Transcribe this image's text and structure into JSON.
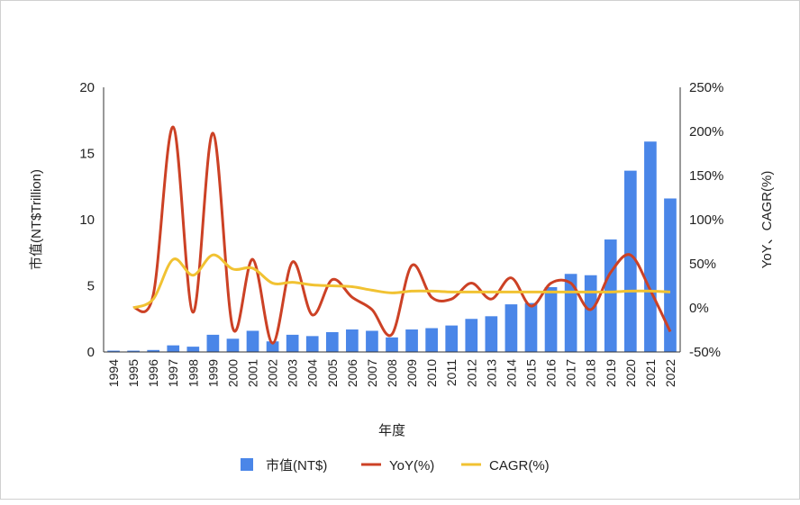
{
  "chart_data": {
    "type": "bar",
    "title": "",
    "xlabel": "年度",
    "ylabel_left": "市值(NT$Trillion)",
    "ylabel_right": "YoY、CAGR(%)",
    "ylim_left": [
      0,
      20
    ],
    "ylim_right": [
      -50,
      250
    ],
    "left_ticks": [
      "0",
      "5",
      "10",
      "15",
      "20"
    ],
    "right_ticks": [
      "-50%",
      "0%",
      "50%",
      "100%",
      "150%",
      "200%",
      "250%"
    ],
    "grid": false,
    "legend_position": "bottom",
    "categories": [
      "1994",
      "1995",
      "1996",
      "1997",
      "1998",
      "1999",
      "2000",
      "2001",
      "2002",
      "2003",
      "2004",
      "2005",
      "2006",
      "2007",
      "2008",
      "2009",
      "2010",
      "2011",
      "2012",
      "2013",
      "2014",
      "2015",
      "2016",
      "2017",
      "2018",
      "2019",
      "2020",
      "2021",
      "2022"
    ],
    "series": [
      {
        "name": "市值(NT$)",
        "type": "bar",
        "axis": "left",
        "color": "#4a86e8",
        "values": [
          0.1,
          0.1,
          0.15,
          0.5,
          0.4,
          1.3,
          1.0,
          1.6,
          0.8,
          1.3,
          1.2,
          1.5,
          1.7,
          1.6,
          1.1,
          1.7,
          1.8,
          2.0,
          2.5,
          2.7,
          3.6,
          3.7,
          4.9,
          5.9,
          5.8,
          8.5,
          13.7,
          15.9,
          11.6
        ]
      },
      {
        "name": "YoY(%)",
        "type": "line",
        "axis": "right",
        "color": "#cc4125",
        "values": [
          null,
          0,
          15,
          205,
          -5,
          198,
          -23,
          55,
          -40,
          52,
          -8,
          32,
          12,
          -2,
          -30,
          48,
          12,
          10,
          28,
          10,
          34,
          2,
          28,
          28,
          -2,
          40,
          60,
          20,
          -27
        ]
      },
      {
        "name": "CAGR(%)",
        "type": "line",
        "axis": "right",
        "color": "#f1c232",
        "values": [
          null,
          0,
          10,
          55,
          37,
          60,
          44,
          45,
          28,
          29,
          26,
          25,
          24,
          20,
          17,
          19,
          19,
          18,
          18,
          18,
          18,
          18,
          18,
          18,
          18,
          18,
          19,
          19,
          18
        ]
      }
    ]
  }
}
